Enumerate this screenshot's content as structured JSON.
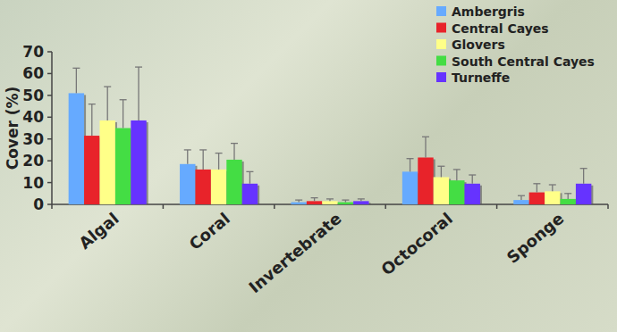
{
  "chart_data": {
    "type": "bar",
    "y_label": "Cover (%)",
    "categories": [
      "Algal",
      "Coral",
      "Invertebrate",
      "Octocoral",
      "Sponge"
    ],
    "series": [
      {
        "name": "Ambergris",
        "color": "#66aaff",
        "values": [
          51,
          18.5,
          1,
          15,
          2
        ],
        "errors": [
          11.5,
          6.5,
          1,
          6,
          2
        ]
      },
      {
        "name": "Central Cayes",
        "color": "#e8232a",
        "values": [
          31.5,
          16,
          1.5,
          21.5,
          5.5
        ],
        "errors": [
          14.5,
          9,
          1.5,
          9.5,
          4
        ]
      },
      {
        "name": "Glovers",
        "color": "#ffff88",
        "values": [
          38.5,
          16,
          1.5,
          12.5,
          6
        ],
        "errors": [
          15.5,
          7.5,
          1,
          5,
          3
        ]
      },
      {
        "name": "South Central Cayes",
        "color": "#44dd44",
        "values": [
          35,
          20.5,
          1,
          11,
          2.5
        ],
        "errors": [
          13,
          7.5,
          1,
          5,
          2.5
        ]
      },
      {
        "name": "Turneffe",
        "color": "#6633ff",
        "values": [
          38.5,
          9.5,
          1.5,
          9.5,
          9.5
        ],
        "errors": [
          24.5,
          5.5,
          1,
          4,
          7
        ]
      }
    ],
    "ylim": [
      0,
      70
    ],
    "yticks": [
      0,
      10,
      20,
      30,
      40,
      50,
      60,
      70
    ],
    "grid": false,
    "legend": "upper right"
  }
}
